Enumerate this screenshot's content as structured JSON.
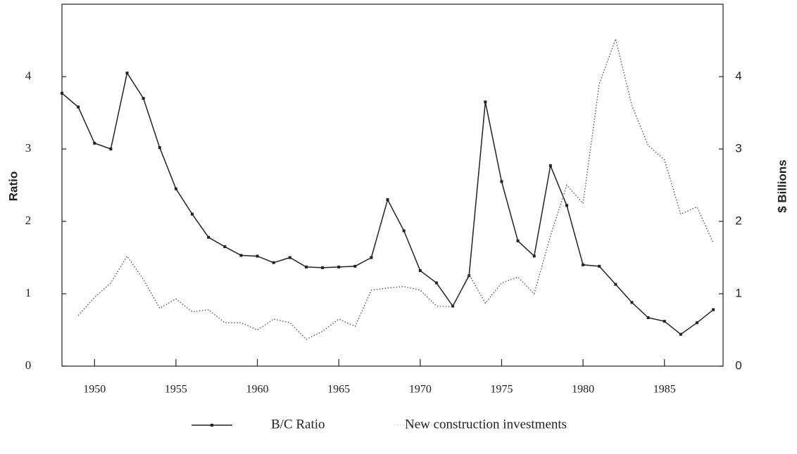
{
  "chart_data": {
    "type": "line",
    "y_label": "Ratio",
    "y2_label": "$ Billions",
    "x": [
      1948,
      1949,
      1950,
      1951,
      1952,
      1953,
      1954,
      1955,
      1956,
      1957,
      1958,
      1959,
      1960,
      1961,
      1962,
      1963,
      1964,
      1965,
      1966,
      1967,
      1968,
      1969,
      1970,
      1971,
      1972,
      1973,
      1974,
      1975,
      1976,
      1977,
      1978,
      1979,
      1980,
      1981,
      1982,
      1983,
      1984,
      1985,
      1986,
      1987,
      1988
    ],
    "series": [
      {
        "name": "B/C Ratio",
        "color": "#222222",
        "style": "solid",
        "markers": true,
        "values": [
          3.77,
          3.58,
          3.08,
          3.0,
          4.05,
          3.7,
          3.02,
          2.45,
          2.1,
          1.78,
          1.65,
          1.53,
          1.52,
          1.43,
          1.5,
          1.37,
          1.36,
          1.37,
          1.38,
          1.5,
          2.3,
          1.87,
          1.32,
          1.15,
          0.83,
          1.25,
          3.65,
          2.55,
          1.73,
          1.52,
          2.77,
          2.22,
          1.4,
          1.38,
          1.13,
          0.88,
          0.67,
          0.62,
          0.44,
          0.6,
          0.78
        ]
      },
      {
        "name": "New construction investments",
        "color": "#555555",
        "style": "dotted",
        "markers": false,
        "axis": "y2",
        "values": [
          null,
          0.7,
          0.95,
          1.15,
          1.52,
          1.2,
          0.8,
          0.93,
          0.75,
          0.78,
          0.6,
          0.6,
          0.5,
          0.65,
          0.6,
          0.37,
          0.48,
          0.65,
          0.55,
          1.05,
          1.08,
          1.1,
          1.05,
          0.83,
          0.82,
          1.27,
          0.87,
          1.15,
          1.23,
          1.0,
          1.8,
          2.5,
          2.25,
          3.9,
          4.52,
          3.6,
          3.05,
          2.85,
          2.1,
          2.2,
          1.7
        ]
      }
    ],
    "xlim": [
      1948,
      1988.6
    ],
    "xticks": [
      1950,
      1955,
      1960,
      1965,
      1970,
      1975,
      1980,
      1985
    ],
    "ylim": [
      0,
      5
    ],
    "yticks": [
      0,
      1,
      2,
      3,
      4
    ],
    "y2lim": [
      0,
      5
    ],
    "y2ticks": [
      0,
      1,
      2,
      3,
      4
    ],
    "grid": false
  }
}
